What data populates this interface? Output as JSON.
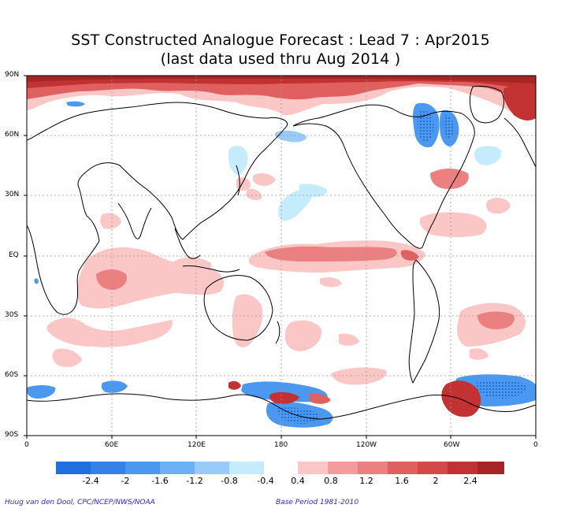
{
  "title": {
    "line1": "SST Constructed Analogue Forecast : Lead 7 : Apr2015",
    "line2": "(last data used thru Aug 2014 )"
  },
  "axes": {
    "lat_labels": [
      "90N",
      "60N",
      "30N",
      "EQ",
      "30S",
      "60S",
      "90S"
    ],
    "lon_labels": [
      "0",
      "60E",
      "120E",
      "180",
      "120W",
      "60W",
      "0"
    ]
  },
  "legend": {
    "negative": {
      "labels": [
        "-2.4",
        "-2",
        "-1.6",
        "-1.2",
        "-0.8",
        "-0.4"
      ],
      "colors": [
        "#1e6fe0",
        "#3282e8",
        "#4a98f0",
        "#6eb0f5",
        "#98cbf8",
        "#c4ecfd"
      ]
    },
    "positive": {
      "labels": [
        "0.4",
        "0.8",
        "1.2",
        "1.6",
        "2",
        "2.4"
      ],
      "colors": [
        "#fbc6c6",
        "#f49c9c",
        "#ec8080",
        "#e06060",
        "#d44848",
        "#c23232",
        "#a82424"
      ]
    }
  },
  "credits": {
    "left": "Huug van den Dool, CPC/NCEP/NWS/NOAA",
    "right": "Base Period 1981-2010"
  }
}
